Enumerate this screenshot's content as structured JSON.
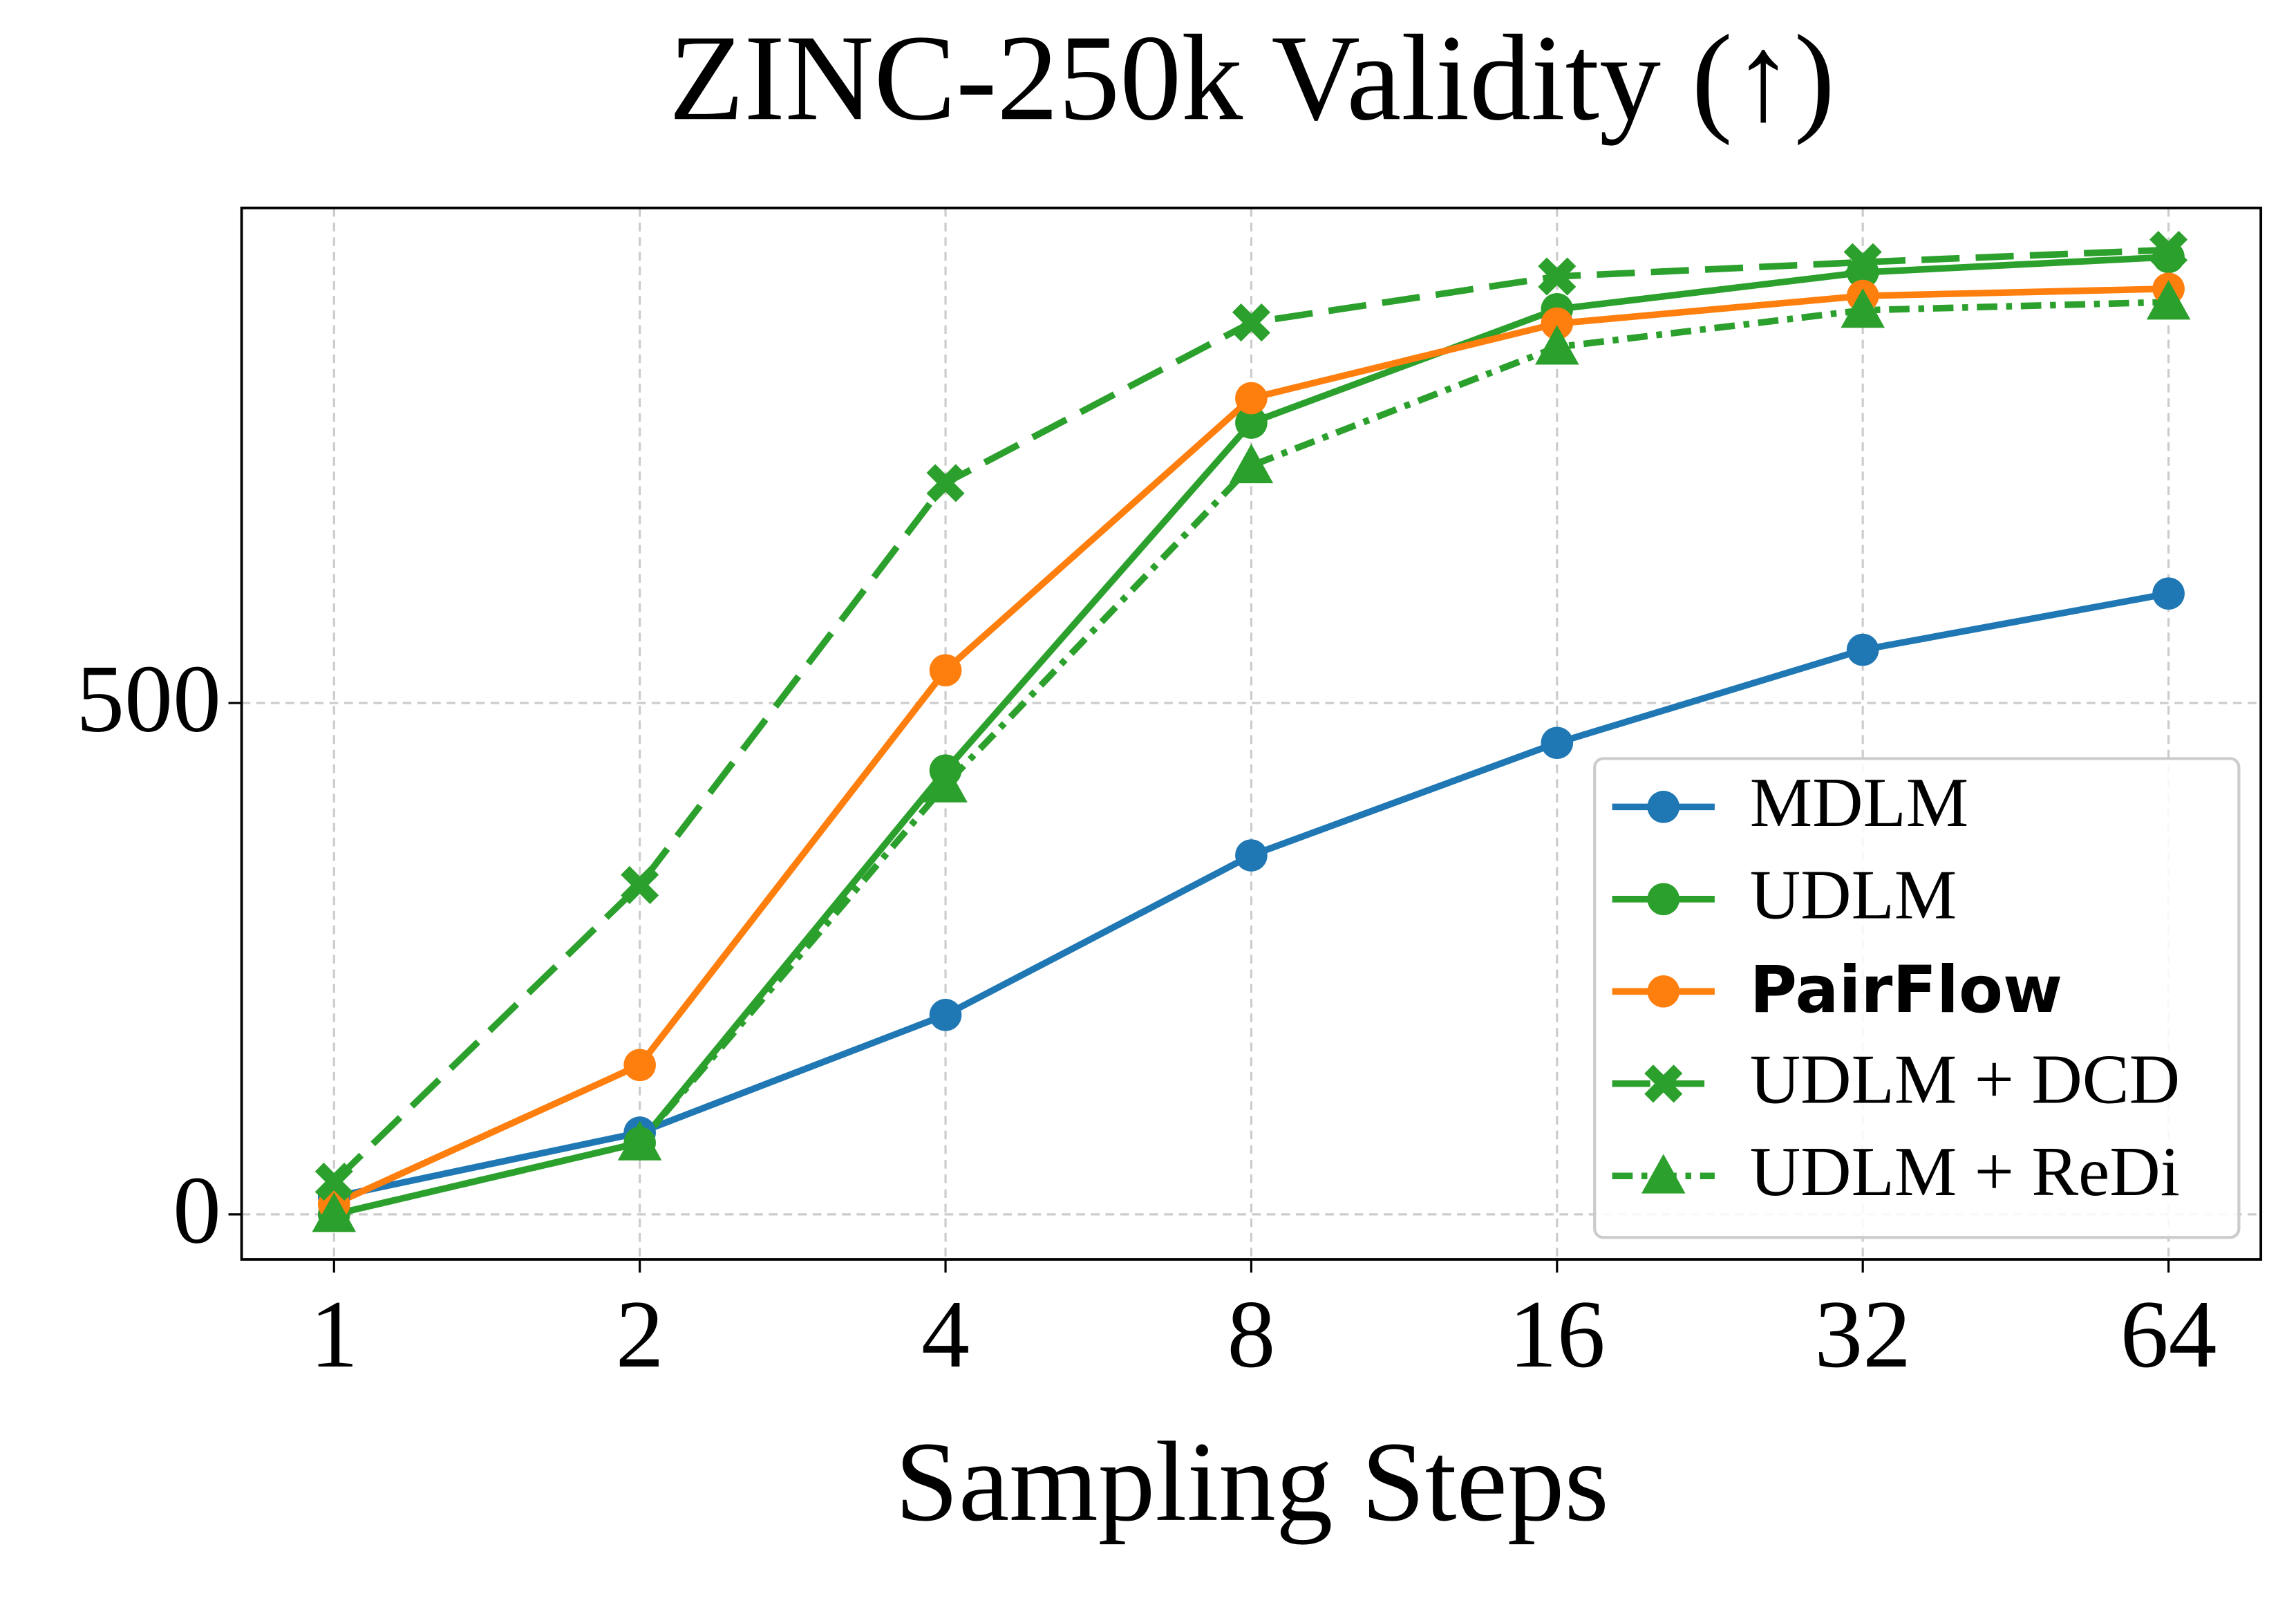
{
  "chart_data": {
    "type": "line",
    "title": "ZINC-250k Validity (↑)",
    "x_label": "Sampling Steps",
    "x": [
      1,
      2,
      4,
      8,
      16,
      32,
      64
    ],
    "xscale": "log2",
    "xlim": [
      0.811,
      78.9
    ],
    "xticks": [
      1,
      2,
      4,
      8,
      16,
      32,
      64
    ],
    "ylim": [
      -44,
      984
    ],
    "yticks": [
      0,
      500
    ],
    "grid": true,
    "legend": "lower right",
    "series": [
      {
        "name": "MDLM",
        "color": "#1f77b4",
        "marker": "circle",
        "linestyle": "solid",
        "values": [
          17,
          80,
          195,
          351,
          461,
          552,
          607
        ]
      },
      {
        "name": "UDLM",
        "color": "#2ca02c",
        "marker": "circle",
        "linestyle": "solid",
        "values": [
          0,
          70,
          434,
          774,
          885,
          921,
          936
        ]
      },
      {
        "name": "PairFlow",
        "color": "#ff7f0e",
        "marker": "circle",
        "linestyle": "solid",
        "bold": true,
        "values": [
          10,
          146,
          532,
          798,
          871,
          898,
          905
        ]
      },
      {
        "name": "UDLM + DCD",
        "color": "#2ca02c",
        "marker": "x",
        "linestyle": "dashed",
        "values": [
          32,
          322,
          715,
          872,
          917,
          931,
          943
        ]
      },
      {
        "name": "UDLM + ReDi",
        "color": "#2ca02c",
        "marker": "triangle",
        "linestyle": "dashdot",
        "values": [
          0,
          70,
          420,
          732,
          848,
          884,
          892
        ]
      }
    ]
  }
}
